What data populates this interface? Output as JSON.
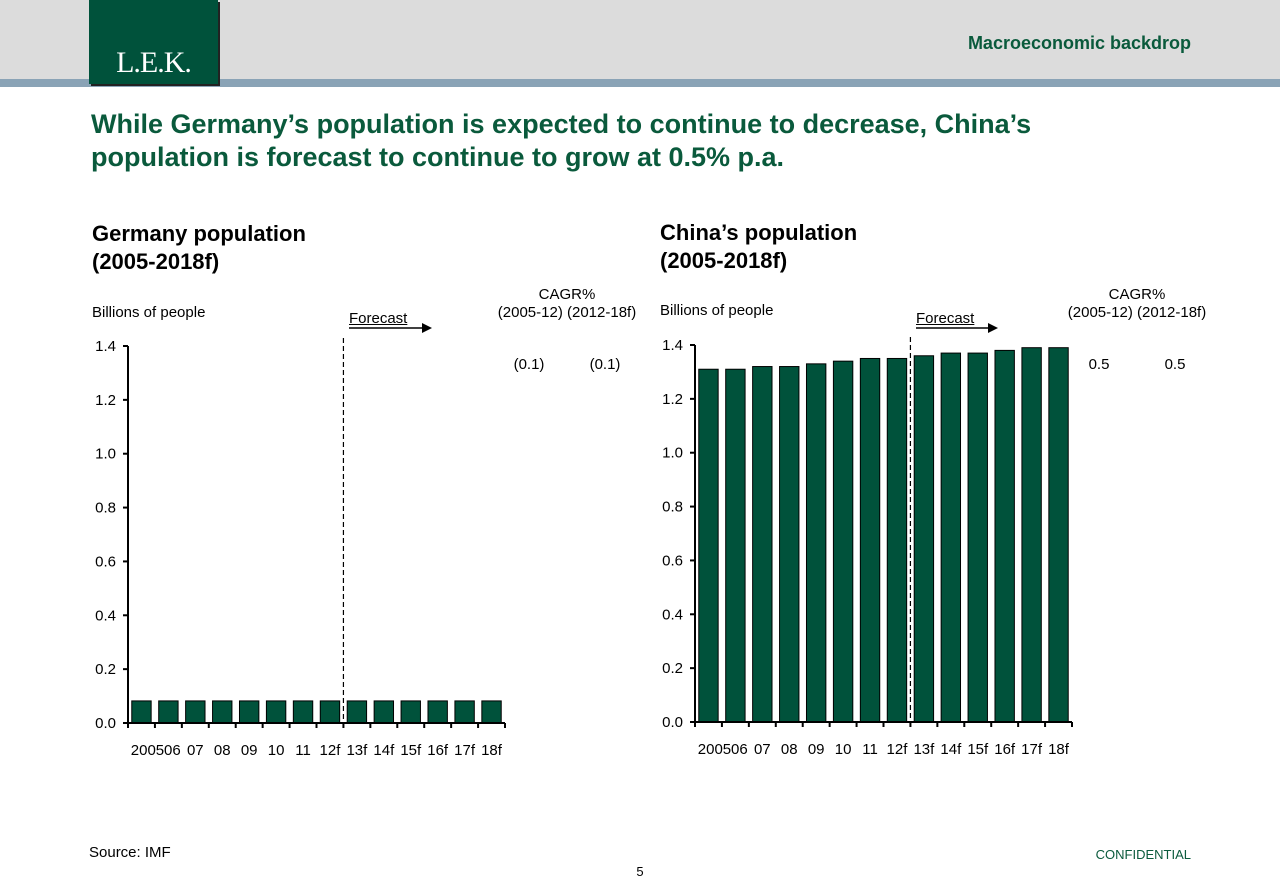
{
  "header": {
    "logo_text": "L.E.K.",
    "section_title": "Macroeconomic backdrop"
  },
  "headline": "While Germany’s population is expected to continue to decrease, China’s population is forecast to continue to grow at 0.5% p.a.",
  "colors": {
    "brand_green": "#00523b",
    "bar_fill": "#00523b",
    "stripe": "#8aa3b6",
    "band": "#dcdcdc"
  },
  "left_panel": {
    "title": "Germany population\n(2005-2018f)",
    "units": "Billions of people",
    "forecast_label": "Forecast",
    "cagr_header": "CAGR%\n(2005-12) (2012-18f)",
    "cagr_values": [
      "(0.1)",
      "(0.1)"
    ]
  },
  "right_panel": {
    "title": "China’s population\n(2005-2018f)",
    "units": "Billions of people",
    "forecast_label": "Forecast",
    "cagr_header": "CAGR%\n(2005-12) (2012-18f)",
    "cagr_values": [
      "0.5",
      "0.5"
    ]
  },
  "chart_data": [
    {
      "type": "bar",
      "title": "Germany population (2005-2018f)",
      "ylabel": "Billions of people",
      "categories": [
        "2005",
        "06",
        "07",
        "08",
        "09",
        "10",
        "11",
        "12f",
        "13f",
        "14f",
        "15f",
        "16f",
        "17f",
        "18f"
      ],
      "values": [
        0.082,
        0.082,
        0.082,
        0.082,
        0.082,
        0.082,
        0.082,
        0.082,
        0.082,
        0.082,
        0.082,
        0.082,
        0.082,
        0.082
      ],
      "ylim": [
        0,
        1.4
      ],
      "yticks": [
        "0.0",
        "0.2",
        "0.4",
        "0.6",
        "0.8",
        "1.0",
        "1.2",
        "1.4"
      ],
      "forecast_after_index": 7,
      "grid": false
    },
    {
      "type": "bar",
      "title": "China’s population (2005-2018f)",
      "ylabel": "Billions of people",
      "categories": [
        "2005",
        "06",
        "07",
        "08",
        "09",
        "10",
        "11",
        "12f",
        "13f",
        "14f",
        "15f",
        "16f",
        "17f",
        "18f"
      ],
      "values": [
        1.31,
        1.31,
        1.32,
        1.32,
        1.33,
        1.34,
        1.35,
        1.35,
        1.36,
        1.37,
        1.37,
        1.38,
        1.39,
        1.39
      ],
      "ylim": [
        0,
        1.4
      ],
      "yticks": [
        "0.0",
        "0.2",
        "0.4",
        "0.6",
        "0.8",
        "1.0",
        "1.2",
        "1.4"
      ],
      "forecast_after_index": 7,
      "grid": false
    }
  ],
  "footer": {
    "source": "Source: IMF",
    "page_number": "5",
    "confidential": "CONFIDENTIAL"
  }
}
